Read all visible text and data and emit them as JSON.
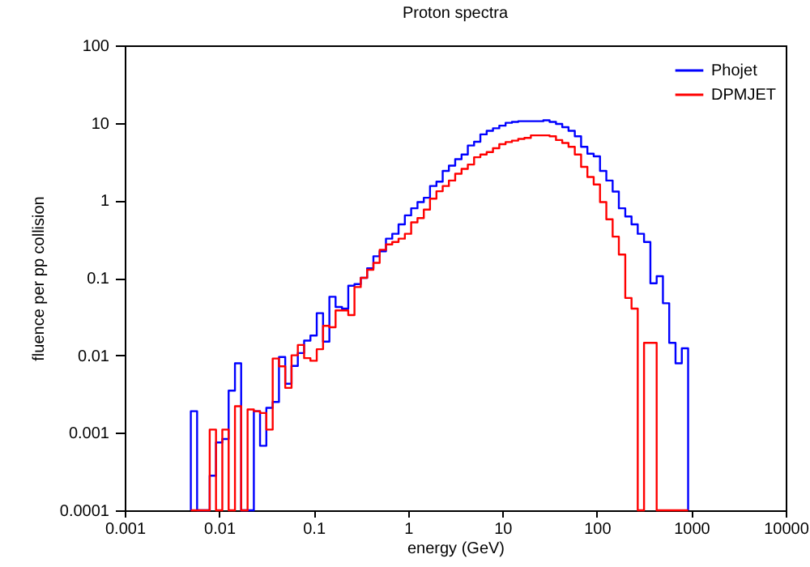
{
  "chart_data": {
    "type": "histogram",
    "title": "Proton spectra",
    "xlabel": "energy (GeV)",
    "ylabel": "fluence per pp collision",
    "log": "xy",
    "legend": "top right",
    "xlim": [
      0.001,
      10000
    ],
    "ylim": [
      0.0001,
      100
    ],
    "xticks": [
      0.001,
      0.01,
      0.1,
      1,
      10,
      100,
      1000,
      10000
    ],
    "yticks": [
      0.0001,
      0.001,
      0.01,
      0.1,
      1,
      10,
      100
    ],
    "bins": [
      0.00501,
      0.00584,
      0.00681,
      0.00794,
      0.00926,
      0.0108,
      0.0126,
      0.0147,
      0.0171,
      0.02,
      0.0233,
      0.0271,
      0.0316,
      0.0369,
      0.043,
      0.0501,
      0.0584,
      0.0681,
      0.0794,
      0.0926,
      0.108,
      0.126,
      0.147,
      0.171,
      0.2,
      0.233,
      0.271,
      0.316,
      0.369,
      0.43,
      0.501,
      0.584,
      0.681,
      0.794,
      0.926,
      1.08,
      1.26,
      1.47,
      1.71,
      2,
      2.33,
      2.71,
      3.16,
      3.69,
      4.3,
      5.01,
      5.84,
      6.81,
      7.94,
      9.26,
      10.8,
      12.6,
      14.7,
      17.1,
      20,
      23.3,
      27.1,
      31.6,
      36.9,
      43,
      50.1,
      58.4,
      68.1,
      79.4,
      92.6,
      108,
      126,
      147,
      171,
      200,
      233,
      271,
      316,
      369,
      430,
      501,
      584,
      681,
      794,
      926
    ],
    "series": [
      {
        "name": "Phojet",
        "color": "#0000ff",
        "values": [
          0.0019,
          null,
          null,
          0.00028,
          0.00075,
          0.00083,
          0.0035,
          0.0079,
          null,
          null,
          0.0019,
          0.00068,
          0.0021,
          0.0025,
          0.0095,
          0.0043,
          0.0073,
          0.0107,
          0.0155,
          0.018,
          0.035,
          0.015,
          0.057,
          0.042,
          0.04,
          0.079,
          0.083,
          0.1,
          0.133,
          0.19,
          0.22,
          0.32,
          0.37,
          0.49,
          0.64,
          0.79,
          0.95,
          1.08,
          1.53,
          1.74,
          2.4,
          2.8,
          3.4,
          3.9,
          5.1,
          5.7,
          7.1,
          7.9,
          8.5,
          9.2,
          10,
          10.3,
          10.5,
          10.5,
          10.5,
          10.5,
          10.8,
          10.3,
          9.7,
          8.8,
          7.9,
          6.7,
          4.9,
          4,
          3.7,
          2.4,
          1.8,
          1.3,
          0.79,
          0.62,
          0.49,
          0.37,
          0.29,
          0.085,
          0.105,
          0.047,
          0.0145,
          0.0079,
          0.0123
        ]
      },
      {
        "name": "DPMJET",
        "color": "#ff0000",
        "values": [
          null,
          null,
          null,
          0.0011,
          null,
          0.0011,
          null,
          0.0022,
          null,
          0.002,
          0.0019,
          0.0018,
          0.0011,
          0.0091,
          0.0072,
          0.0038,
          0.01,
          0.0136,
          0.0092,
          0.0085,
          0.012,
          0.024,
          0.023,
          0.038,
          0.038,
          0.033,
          0.076,
          0.1,
          0.127,
          0.156,
          0.23,
          0.27,
          0.29,
          0.32,
          0.37,
          0.52,
          0.59,
          0.76,
          1.05,
          1.31,
          1.53,
          1.8,
          2.2,
          2.55,
          2.9,
          3.6,
          3.9,
          4.2,
          4.7,
          5.3,
          5.65,
          5.9,
          6.2,
          6.4,
          6.9,
          6.9,
          6.9,
          6.7,
          6,
          5.5,
          4.9,
          3.9,
          2.7,
          2,
          1.6,
          0.95,
          0.57,
          0.34,
          0.2,
          0.055,
          0.04,
          null,
          0.0145,
          0.0145,
          null,
          null,
          null,
          null,
          null
        ]
      }
    ]
  }
}
